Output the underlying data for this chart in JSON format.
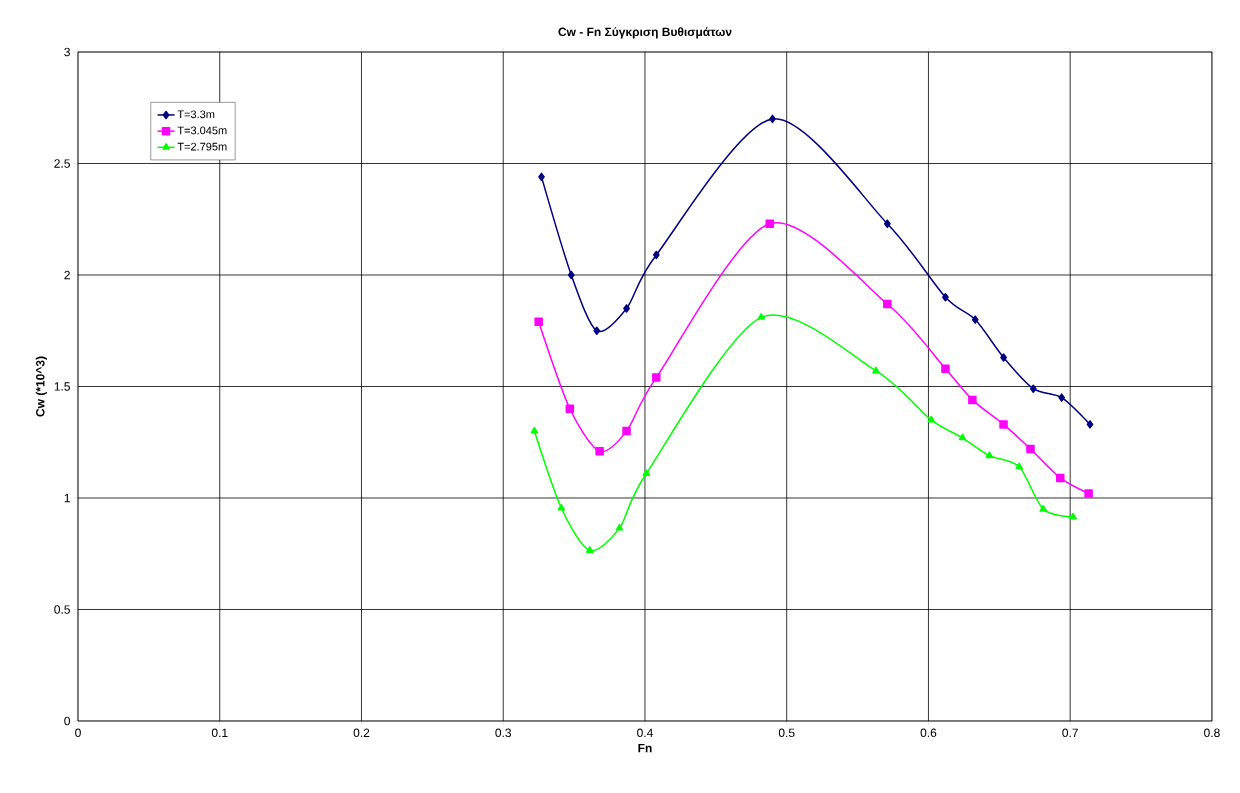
{
  "chart_data": {
    "type": "line",
    "title": "Cw - Fn Σύγκριση Βυθισμάτων",
    "xlabel": "Fn",
    "ylabel": "Cw (*10^3)",
    "xlim": [
      0,
      0.8
    ],
    "ylim": [
      0,
      3
    ],
    "xticks": [
      0,
      0.1,
      0.2,
      0.3,
      0.4,
      0.5,
      0.6,
      0.7,
      0.8
    ],
    "yticks": [
      0,
      0.5,
      1,
      1.5,
      2,
      2.5,
      3
    ],
    "grid": true,
    "legend": "top left",
    "line_style": "solid",
    "series": [
      {
        "name": "T=3.3m",
        "color": "#000080",
        "marker": "diamond",
        "x": [
          0.327,
          0.348,
          0.366,
          0.387,
          0.408,
          0.49,
          0.571,
          0.612,
          0.633,
          0.653,
          0.674,
          0.694,
          0.714
        ],
        "values": [
          2.44,
          2.0,
          1.75,
          1.85,
          2.09,
          2.7,
          2.23,
          1.9,
          1.8,
          1.63,
          1.49,
          1.45,
          1.33
        ]
      },
      {
        "name": "T=3.045m",
        "color": "#ff00ff",
        "marker": "square",
        "x": [
          0.325,
          0.347,
          0.368,
          0.387,
          0.408,
          0.488,
          0.571,
          0.612,
          0.631,
          0.653,
          0.672,
          0.693,
          0.713
        ],
        "values": [
          1.79,
          1.4,
          1.21,
          1.3,
          1.54,
          2.23,
          1.87,
          1.58,
          1.44,
          1.33,
          1.22,
          1.09,
          1.02
        ]
      },
      {
        "name": "T=2.795m",
        "color": "#00ff00",
        "marker": "triangle",
        "x": [
          0.322,
          0.341,
          0.361,
          0.382,
          0.401,
          0.482,
          0.563,
          0.602,
          0.624,
          0.643,
          0.664,
          0.681,
          0.702
        ],
        "values": [
          1.3,
          0.955,
          0.765,
          0.865,
          1.11,
          1.81,
          1.57,
          1.35,
          1.27,
          1.19,
          1.14,
          0.95,
          0.915
        ]
      }
    ]
  }
}
